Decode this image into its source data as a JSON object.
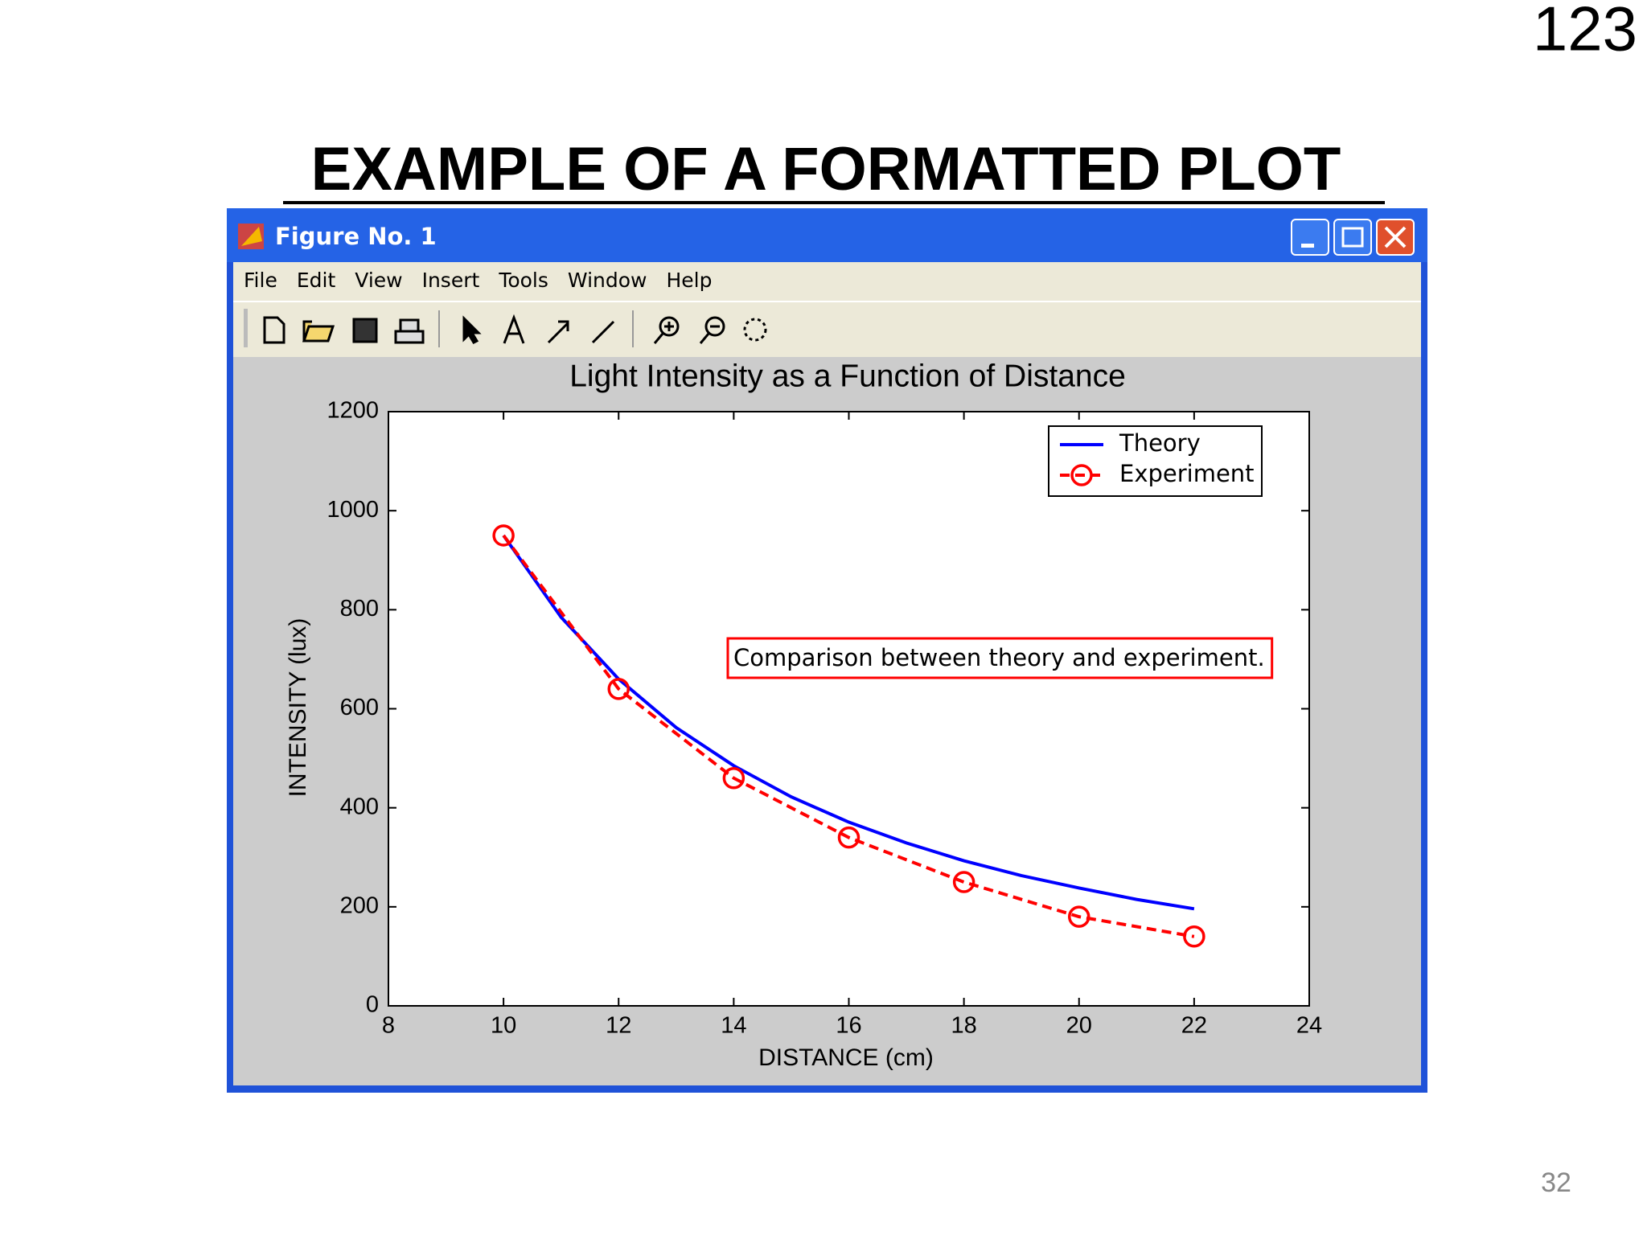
{
  "slide": {
    "page_label": "123",
    "title": "EXAMPLE OF A FORMATTED PLOT",
    "page_number": "32"
  },
  "window": {
    "title": "Figure No. 1",
    "menu": [
      "File",
      "Edit",
      "View",
      "Insert",
      "Tools",
      "Window",
      "Help"
    ]
  },
  "chart_data": {
    "type": "line",
    "title": "Light Intensity as a Function of Distance",
    "x_label": "DISTANCE (cm)",
    "y_label": "INTENSITY (lux)",
    "xlim": [
      8,
      24
    ],
    "xticks": [
      8,
      10,
      12,
      14,
      16,
      18,
      20,
      22,
      24
    ],
    "ylim": [
      0,
      1200
    ],
    "yticks": [
      0,
      200,
      400,
      600,
      800,
      1000,
      1200
    ],
    "legend": "upper right",
    "series": [
      {
        "name": "Theory",
        "color": "#0000ff",
        "line_style": "solid",
        "x": [
          10,
          11,
          12,
          13,
          14,
          15,
          16,
          17,
          18,
          19,
          20,
          21,
          22
        ],
        "values": [
          950,
          785,
          660,
          562,
          485,
          422,
          371,
          329,
          293,
          263,
          238,
          215,
          196
        ]
      },
      {
        "name": "Experiment",
        "color": "#ff0000",
        "line_style": "dashed",
        "marker": "circle",
        "x": [
          10,
          12,
          14,
          16,
          18,
          20,
          22
        ],
        "values": [
          950,
          640,
          460,
          340,
          250,
          180,
          140
        ]
      }
    ],
    "annotation": "Comparison between theory and experiment.",
    "annotation_color": "#ff0000"
  }
}
